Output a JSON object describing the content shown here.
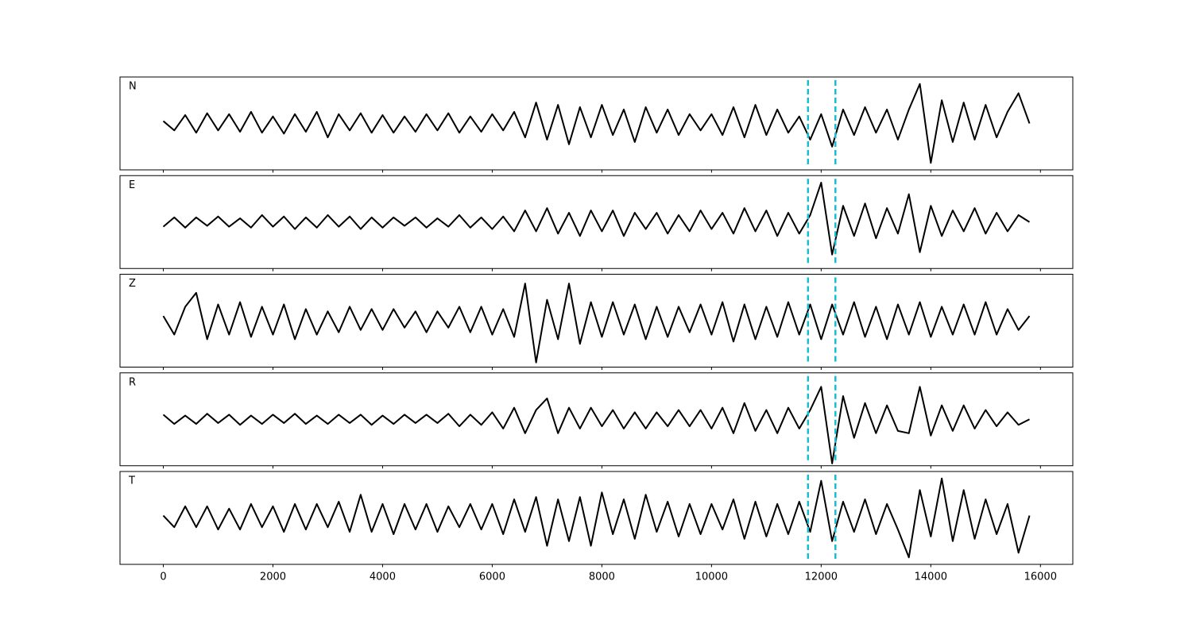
{
  "chart_data": {
    "type": "line",
    "x": [
      0,
      200,
      400,
      600,
      800,
      1000,
      1200,
      1400,
      1600,
      1800,
      2000,
      2200,
      2400,
      2600,
      2800,
      3000,
      3200,
      3400,
      3600,
      3800,
      4000,
      4200,
      4400,
      4600,
      4800,
      5000,
      5200,
      5400,
      5600,
      5800,
      6000,
      6200,
      6400,
      6600,
      6800,
      7000,
      7200,
      7400,
      7600,
      7800,
      8000,
      8200,
      8400,
      8600,
      8800,
      9000,
      9200,
      9400,
      9600,
      9800,
      10000,
      10200,
      10400,
      10600,
      10800,
      11000,
      11200,
      11400,
      11600,
      11800,
      12000,
      12200,
      12400,
      12600,
      12800,
      13000,
      13200,
      13400,
      13600,
      13800,
      14000,
      14200,
      14400,
      14600,
      14800,
      15000,
      15200,
      15400,
      15600,
      15800
    ],
    "xlim": [
      -790,
      16590
    ],
    "xticks": [
      0,
      2000,
      4000,
      6000,
      8000,
      10000,
      12000,
      14000,
      16000
    ],
    "ylim": [
      -1,
      1
    ],
    "vlines": [
      11760,
      12260
    ],
    "vline_color": "#17becf",
    "series": [
      {
        "name": "N",
        "color": "#000000",
        "values": [
          0.05,
          -0.15,
          0.18,
          -0.2,
          0.22,
          -0.15,
          0.2,
          -0.18,
          0.25,
          -0.2,
          0.15,
          -0.22,
          0.2,
          -0.18,
          0.25,
          -0.3,
          0.2,
          -0.15,
          0.22,
          -0.2,
          0.18,
          -0.2,
          0.15,
          -0.18,
          0.2,
          -0.15,
          0.22,
          -0.2,
          0.15,
          -0.18,
          0.2,
          -0.15,
          0.25,
          -0.3,
          0.45,
          -0.35,
          0.4,
          -0.45,
          0.35,
          -0.3,
          0.4,
          -0.25,
          0.3,
          -0.4,
          0.35,
          -0.2,
          0.3,
          -0.25,
          0.2,
          -0.15,
          0.2,
          -0.25,
          0.35,
          -0.3,
          0.4,
          -0.25,
          0.3,
          -0.2,
          0.15,
          -0.35,
          0.2,
          -0.5,
          0.3,
          -0.25,
          0.35,
          -0.2,
          0.3,
          -0.35,
          0.3,
          0.85,
          -0.85,
          0.5,
          -0.4,
          0.45,
          -0.35,
          0.4,
          -0.3,
          0.25,
          0.65,
          0.0
        ]
      },
      {
        "name": "E",
        "color": "#000000",
        "values": [
          -0.1,
          0.1,
          -0.12,
          0.1,
          -0.08,
          0.12,
          -0.1,
          0.08,
          -0.12,
          0.15,
          -0.1,
          0.12,
          -0.15,
          0.1,
          -0.12,
          0.15,
          -0.1,
          0.12,
          -0.15,
          0.1,
          -0.12,
          0.1,
          -0.08,
          0.1,
          -0.12,
          0.08,
          -0.1,
          0.15,
          -0.12,
          0.1,
          -0.15,
          0.12,
          -0.2,
          0.25,
          -0.2,
          0.3,
          -0.25,
          0.2,
          -0.3,
          0.25,
          -0.2,
          0.25,
          -0.3,
          0.2,
          -0.15,
          0.2,
          -0.25,
          0.15,
          -0.2,
          0.25,
          -0.15,
          0.2,
          -0.25,
          0.3,
          -0.2,
          0.25,
          -0.3,
          0.2,
          -0.25,
          0.15,
          0.85,
          -0.7,
          0.35,
          -0.3,
          0.4,
          -0.35,
          0.3,
          -0.25,
          0.6,
          -0.65,
          0.35,
          -0.3,
          0.25,
          -0.2,
          0.3,
          -0.25,
          0.2,
          -0.2,
          0.15,
          0.0
        ]
      },
      {
        "name": "Z",
        "color": "#000000",
        "values": [
          0.1,
          -0.3,
          0.3,
          0.6,
          -0.4,
          0.35,
          -0.3,
          0.4,
          -0.35,
          0.3,
          -0.3,
          0.35,
          -0.4,
          0.25,
          -0.3,
          0.2,
          -0.25,
          0.3,
          -0.2,
          0.25,
          -0.2,
          0.25,
          -0.15,
          0.2,
          -0.25,
          0.2,
          -0.15,
          0.3,
          -0.25,
          0.3,
          -0.3,
          0.25,
          -0.35,
          0.8,
          -0.9,
          0.45,
          -0.4,
          0.8,
          -0.5,
          0.4,
          -0.35,
          0.4,
          -0.3,
          0.35,
          -0.4,
          0.3,
          -0.35,
          0.3,
          -0.25,
          0.35,
          -0.3,
          0.4,
          -0.45,
          0.35,
          -0.4,
          0.3,
          -0.35,
          0.4,
          -0.3,
          0.35,
          -0.4,
          0.35,
          -0.3,
          0.4,
          -0.35,
          0.3,
          -0.4,
          0.35,
          -0.3,
          0.4,
          -0.35,
          0.3,
          -0.3,
          0.35,
          -0.3,
          0.4,
          -0.3,
          0.25,
          -0.2,
          0.1
        ]
      },
      {
        "name": "R",
        "color": "#000000",
        "values": [
          0.1,
          -0.1,
          0.08,
          -0.1,
          0.12,
          -0.08,
          0.1,
          -0.12,
          0.08,
          -0.1,
          0.1,
          -0.08,
          0.12,
          -0.1,
          0.08,
          -0.1,
          0.1,
          -0.08,
          0.1,
          -0.12,
          0.08,
          -0.1,
          0.1,
          -0.08,
          0.1,
          -0.08,
          0.12,
          -0.15,
          0.1,
          -0.12,
          0.15,
          -0.2,
          0.25,
          -0.3,
          0.2,
          0.45,
          -0.3,
          0.25,
          -0.2,
          0.25,
          -0.15,
          0.2,
          -0.2,
          0.15,
          -0.2,
          0.15,
          -0.15,
          0.2,
          -0.15,
          0.2,
          -0.2,
          0.25,
          -0.3,
          0.35,
          -0.25,
          0.2,
          -0.3,
          0.25,
          -0.2,
          0.2,
          0.7,
          -0.95,
          0.5,
          -0.4,
          0.35,
          -0.3,
          0.3,
          -0.25,
          -0.3,
          0.7,
          -0.35,
          0.3,
          -0.25,
          0.3,
          -0.2,
          0.2,
          -0.15,
          0.15,
          -0.12,
          0.0
        ]
      },
      {
        "name": "T",
        "color": "#000000",
        "values": [
          0.05,
          -0.2,
          0.25,
          -0.2,
          0.25,
          -0.25,
          0.2,
          -0.25,
          0.3,
          -0.2,
          0.25,
          -0.3,
          0.3,
          -0.25,
          0.3,
          -0.2,
          0.35,
          -0.3,
          0.5,
          -0.3,
          0.3,
          -0.35,
          0.3,
          -0.25,
          0.3,
          -0.3,
          0.25,
          -0.2,
          0.3,
          -0.25,
          0.3,
          -0.35,
          0.4,
          -0.3,
          0.45,
          -0.6,
          0.4,
          -0.5,
          0.45,
          -0.6,
          0.55,
          -0.35,
          0.4,
          -0.45,
          0.5,
          -0.3,
          0.35,
          -0.4,
          0.3,
          -0.35,
          0.3,
          -0.25,
          0.4,
          -0.45,
          0.35,
          -0.4,
          0.3,
          -0.35,
          0.35,
          -0.3,
          0.8,
          -0.5,
          0.35,
          -0.3,
          0.4,
          -0.35,
          0.3,
          -0.25,
          -0.85,
          0.6,
          -0.4,
          0.85,
          -0.5,
          0.6,
          -0.45,
          0.4,
          -0.35,
          0.3,
          -0.75,
          0.05
        ]
      }
    ]
  }
}
